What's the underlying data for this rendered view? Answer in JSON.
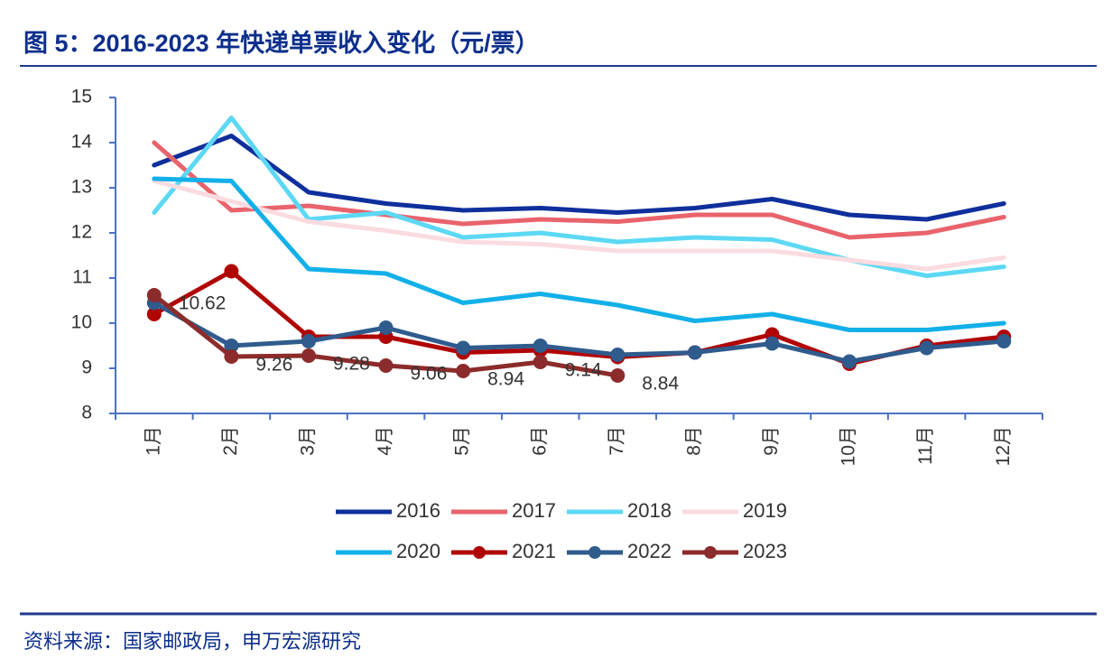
{
  "chart_data": {
    "type": "line",
    "title": "图 5：2016-2023 年快递单票收入变化（元/票）",
    "source": "资料来源：国家邮政局，申万宏源研究",
    "categories": [
      "1月",
      "2月",
      "3月",
      "4月",
      "5月",
      "6月",
      "7月",
      "8月",
      "9月",
      "10月",
      "11月",
      "12月"
    ],
    "ylim": [
      8,
      15
    ],
    "yticks": [
      8,
      9,
      10,
      11,
      12,
      13,
      14,
      15
    ],
    "series": [
      {
        "name": "2016",
        "color": "#0f2f9c",
        "marker": false,
        "values": [
          13.5,
          14.15,
          12.9,
          12.65,
          12.5,
          12.55,
          12.45,
          12.55,
          12.75,
          12.4,
          12.3,
          12.65
        ]
      },
      {
        "name": "2017",
        "color": "#e9636c",
        "marker": false,
        "values": [
          14.0,
          12.5,
          12.6,
          12.4,
          12.2,
          12.3,
          12.25,
          12.4,
          12.4,
          11.9,
          12.0,
          12.35
        ]
      },
      {
        "name": "2018",
        "color": "#5cd8f4",
        "marker": false,
        "values": [
          12.45,
          14.55,
          12.3,
          12.45,
          11.9,
          12.0,
          11.8,
          11.9,
          11.85,
          11.4,
          11.05,
          11.25
        ]
      },
      {
        "name": "2019",
        "color": "#fadbdf",
        "marker": false,
        "values": [
          13.15,
          12.7,
          12.25,
          12.05,
          11.8,
          11.75,
          11.6,
          11.6,
          11.6,
          11.4,
          11.2,
          11.45
        ]
      },
      {
        "name": "2020",
        "color": "#12b0e9",
        "marker": false,
        "values": [
          13.2,
          13.15,
          11.2,
          11.1,
          10.45,
          10.65,
          10.4,
          10.05,
          10.2,
          9.85,
          9.85,
          10.0
        ]
      },
      {
        "name": "2021",
        "color": "#b00505",
        "marker": true,
        "values": [
          10.2,
          11.15,
          9.7,
          9.7,
          9.35,
          9.4,
          9.25,
          9.35,
          9.75,
          9.1,
          9.5,
          9.7
        ]
      },
      {
        "name": "2022",
        "color": "#2f5b8d",
        "marker": true,
        "values": [
          10.45,
          9.5,
          9.6,
          9.9,
          9.45,
          9.5,
          9.3,
          9.35,
          9.55,
          9.15,
          9.45,
          9.6
        ]
      },
      {
        "name": "2023",
        "color": "#8c2b2b",
        "marker": true,
        "data_labels": true,
        "values": [
          10.62,
          9.26,
          9.28,
          9.06,
          8.94,
          9.14,
          8.84,
          null,
          null,
          null,
          null,
          null
        ]
      }
    ]
  }
}
